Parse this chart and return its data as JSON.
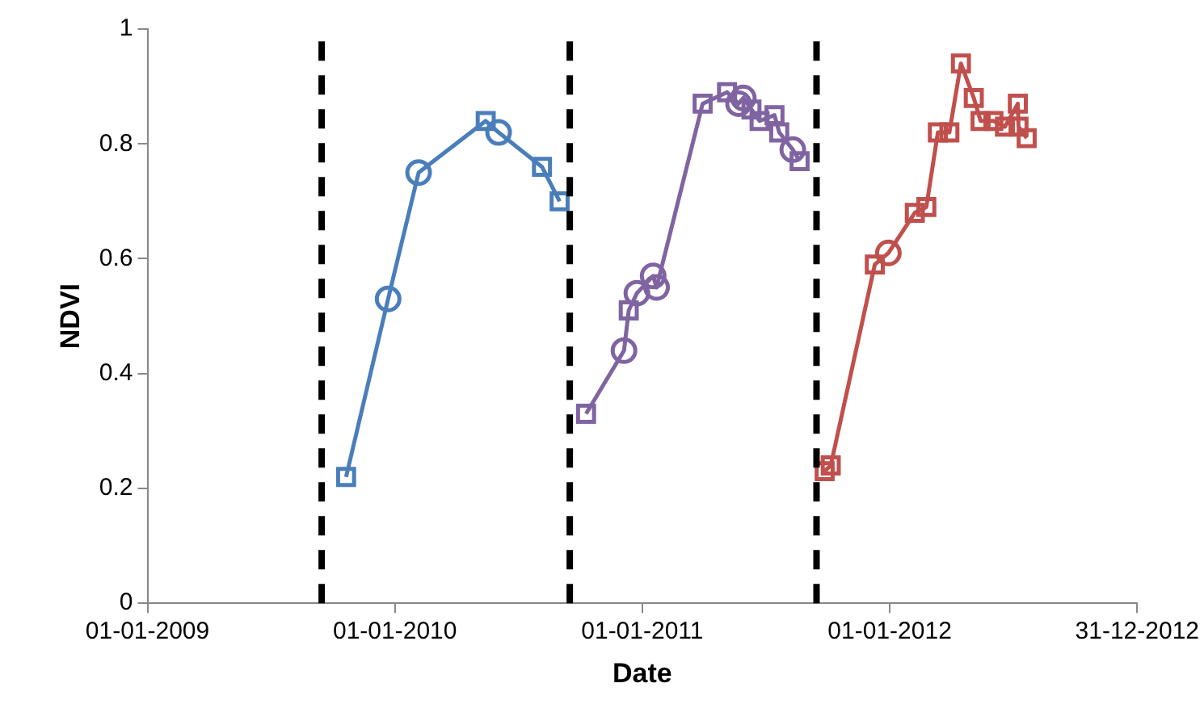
{
  "chart_data": {
    "type": "line",
    "xlabel": "Date",
    "ylabel": "NDVI",
    "xlim": [
      "2009-01-01",
      "2012-12-31"
    ],
    "xticks": [
      {
        "value": "2009-01-01",
        "label": "01-01-2009"
      },
      {
        "value": "2010-01-01",
        "label": "01-01-2010"
      },
      {
        "value": "2011-01-01",
        "label": "01-01-2011"
      },
      {
        "value": "2012-01-01",
        "label": "01-01-2012"
      },
      {
        "value": "2012-12-31",
        "label": "31-12-2012"
      }
    ],
    "ylim": [
      0,
      1
    ],
    "yticks": [
      0,
      0.2,
      0.4,
      0.6,
      0.8,
      1
    ],
    "grid": false,
    "legend": false,
    "ref_lines": [
      {
        "axis": "x",
        "value": "2009-09-15",
        "color": "#000000",
        "line_style": "dashed"
      },
      {
        "axis": "x",
        "value": "2010-09-16",
        "color": "#000000",
        "line_style": "dashed"
      },
      {
        "axis": "x",
        "value": "2011-09-15",
        "color": "#000000",
        "line_style": "dashed"
      }
    ],
    "series": [
      {
        "type": "line",
        "marker": "none",
        "color": "#4a7ebb",
        "x": [
          "2009-10-21",
          "2009-12-22",
          "2010-02-05",
          "2010-05-15",
          "2010-06-03",
          "2010-08-06",
          "2010-09-01"
        ],
        "values": [
          0.22,
          0.53,
          0.75,
          0.84,
          0.82,
          0.76,
          0.7
        ]
      },
      {
        "type": "scatter",
        "marker": "square",
        "color": "#4a7ebb",
        "x": [
          "2009-10-21",
          "2010-05-15",
          "2010-08-06",
          "2010-09-01"
        ],
        "values": [
          0.22,
          0.84,
          0.76,
          0.7
        ]
      },
      {
        "type": "scatter",
        "marker": "circle",
        "color": "#4a7ebb",
        "x": [
          "2009-12-22",
          "2010-02-05",
          "2010-06-03"
        ],
        "values": [
          0.53,
          0.75,
          0.82
        ]
      },
      {
        "type": "line",
        "marker": "none",
        "color": "#8064a2",
        "x": [
          "2010-10-10",
          "2010-12-05",
          "2010-12-12",
          "2010-12-24",
          "2011-01-17",
          "2011-01-22",
          "2011-03-31",
          "2011-05-06",
          "2011-05-23",
          "2011-05-30",
          "2011-06-11",
          "2011-06-23",
          "2011-07-15",
          "2011-07-22",
          "2011-08-11",
          "2011-08-21"
        ],
        "values": [
          0.33,
          0.44,
          0.51,
          0.54,
          0.57,
          0.55,
          0.87,
          0.89,
          0.87,
          0.88,
          0.86,
          0.84,
          0.85,
          0.82,
          0.79,
          0.77
        ]
      },
      {
        "type": "scatter",
        "marker": "square",
        "color": "#8064a2",
        "x": [
          "2010-10-10",
          "2010-12-12",
          "2011-03-31",
          "2011-05-06",
          "2011-06-11",
          "2011-06-23",
          "2011-07-15",
          "2011-07-22",
          "2011-08-21"
        ],
        "values": [
          0.33,
          0.51,
          0.87,
          0.89,
          0.86,
          0.84,
          0.85,
          0.82,
          0.77
        ]
      },
      {
        "type": "scatter",
        "marker": "circle",
        "color": "#8064a2",
        "x": [
          "2010-12-05",
          "2010-12-24",
          "2011-01-17",
          "2011-01-22",
          "2011-05-23",
          "2011-05-30",
          "2011-08-11"
        ],
        "values": [
          0.44,
          0.54,
          0.57,
          0.55,
          0.87,
          0.88,
          0.79
        ]
      },
      {
        "type": "line",
        "marker": "none",
        "color": "#c0504d",
        "x": [
          "2011-09-27",
          "2011-10-06",
          "2011-12-10",
          "2011-12-30",
          "2012-02-07",
          "2012-02-24",
          "2012-03-12",
          "2012-03-29",
          "2012-04-15",
          "2012-05-04",
          "2012-05-14",
          "2012-06-02",
          "2012-06-19",
          "2012-07-08",
          "2012-07-09",
          "2012-07-21"
        ],
        "values": [
          0.23,
          0.24,
          0.59,
          0.61,
          0.68,
          0.69,
          0.82,
          0.82,
          0.94,
          0.88,
          0.84,
          0.84,
          0.83,
          0.87,
          0.83,
          0.81
        ]
      },
      {
        "type": "scatter",
        "marker": "square",
        "color": "#c0504d",
        "x": [
          "2011-09-27",
          "2011-10-06",
          "2011-12-10",
          "2012-02-07",
          "2012-02-24",
          "2012-03-12",
          "2012-03-29",
          "2012-04-15",
          "2012-05-04",
          "2012-05-14",
          "2012-06-02",
          "2012-06-19",
          "2012-07-08",
          "2012-07-09",
          "2012-07-21"
        ],
        "values": [
          0.23,
          0.24,
          0.59,
          0.68,
          0.69,
          0.82,
          0.82,
          0.94,
          0.88,
          0.84,
          0.84,
          0.83,
          0.87,
          0.83,
          0.81
        ]
      },
      {
        "type": "scatter",
        "marker": "circle",
        "color": "#c0504d",
        "x": [
          "2011-12-30"
        ],
        "values": [
          0.61
        ]
      }
    ]
  }
}
